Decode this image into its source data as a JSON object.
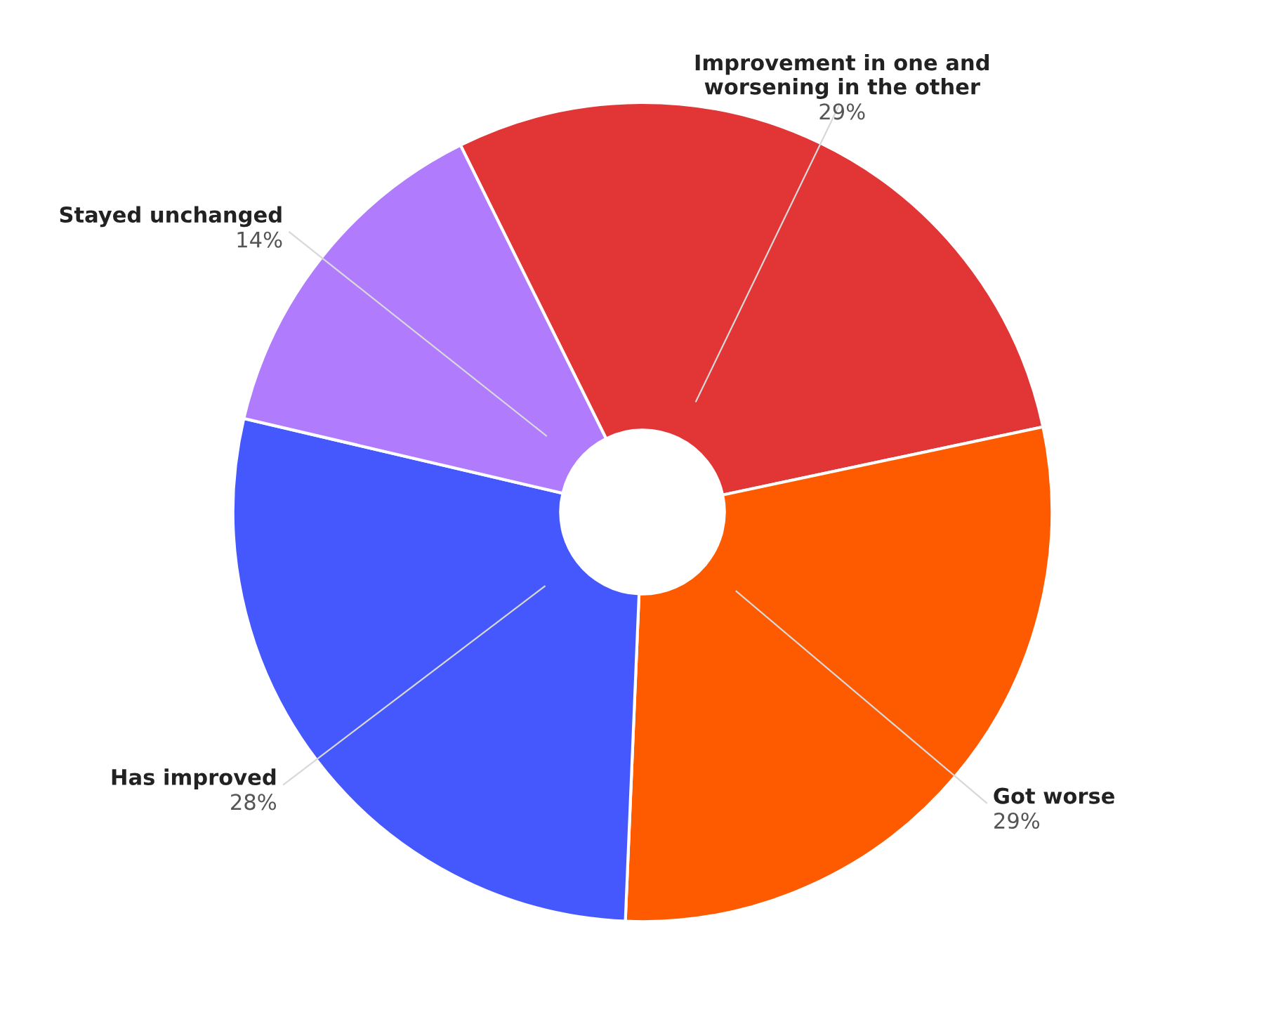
{
  "chart_data": {
    "type": "donut",
    "categories": [
      "Improvement in one and\nworsening in the other",
      "Got worse",
      "Has improved",
      "Stayed unchanged"
    ],
    "values": [
      29,
      29,
      28,
      14
    ],
    "colors": [
      "#e23636",
      "#fe5a00",
      "#4458fe",
      "#b07bfc"
    ],
    "value_labels": [
      "29%",
      "29%",
      "28%",
      "14%"
    ],
    "legend": false
  }
}
